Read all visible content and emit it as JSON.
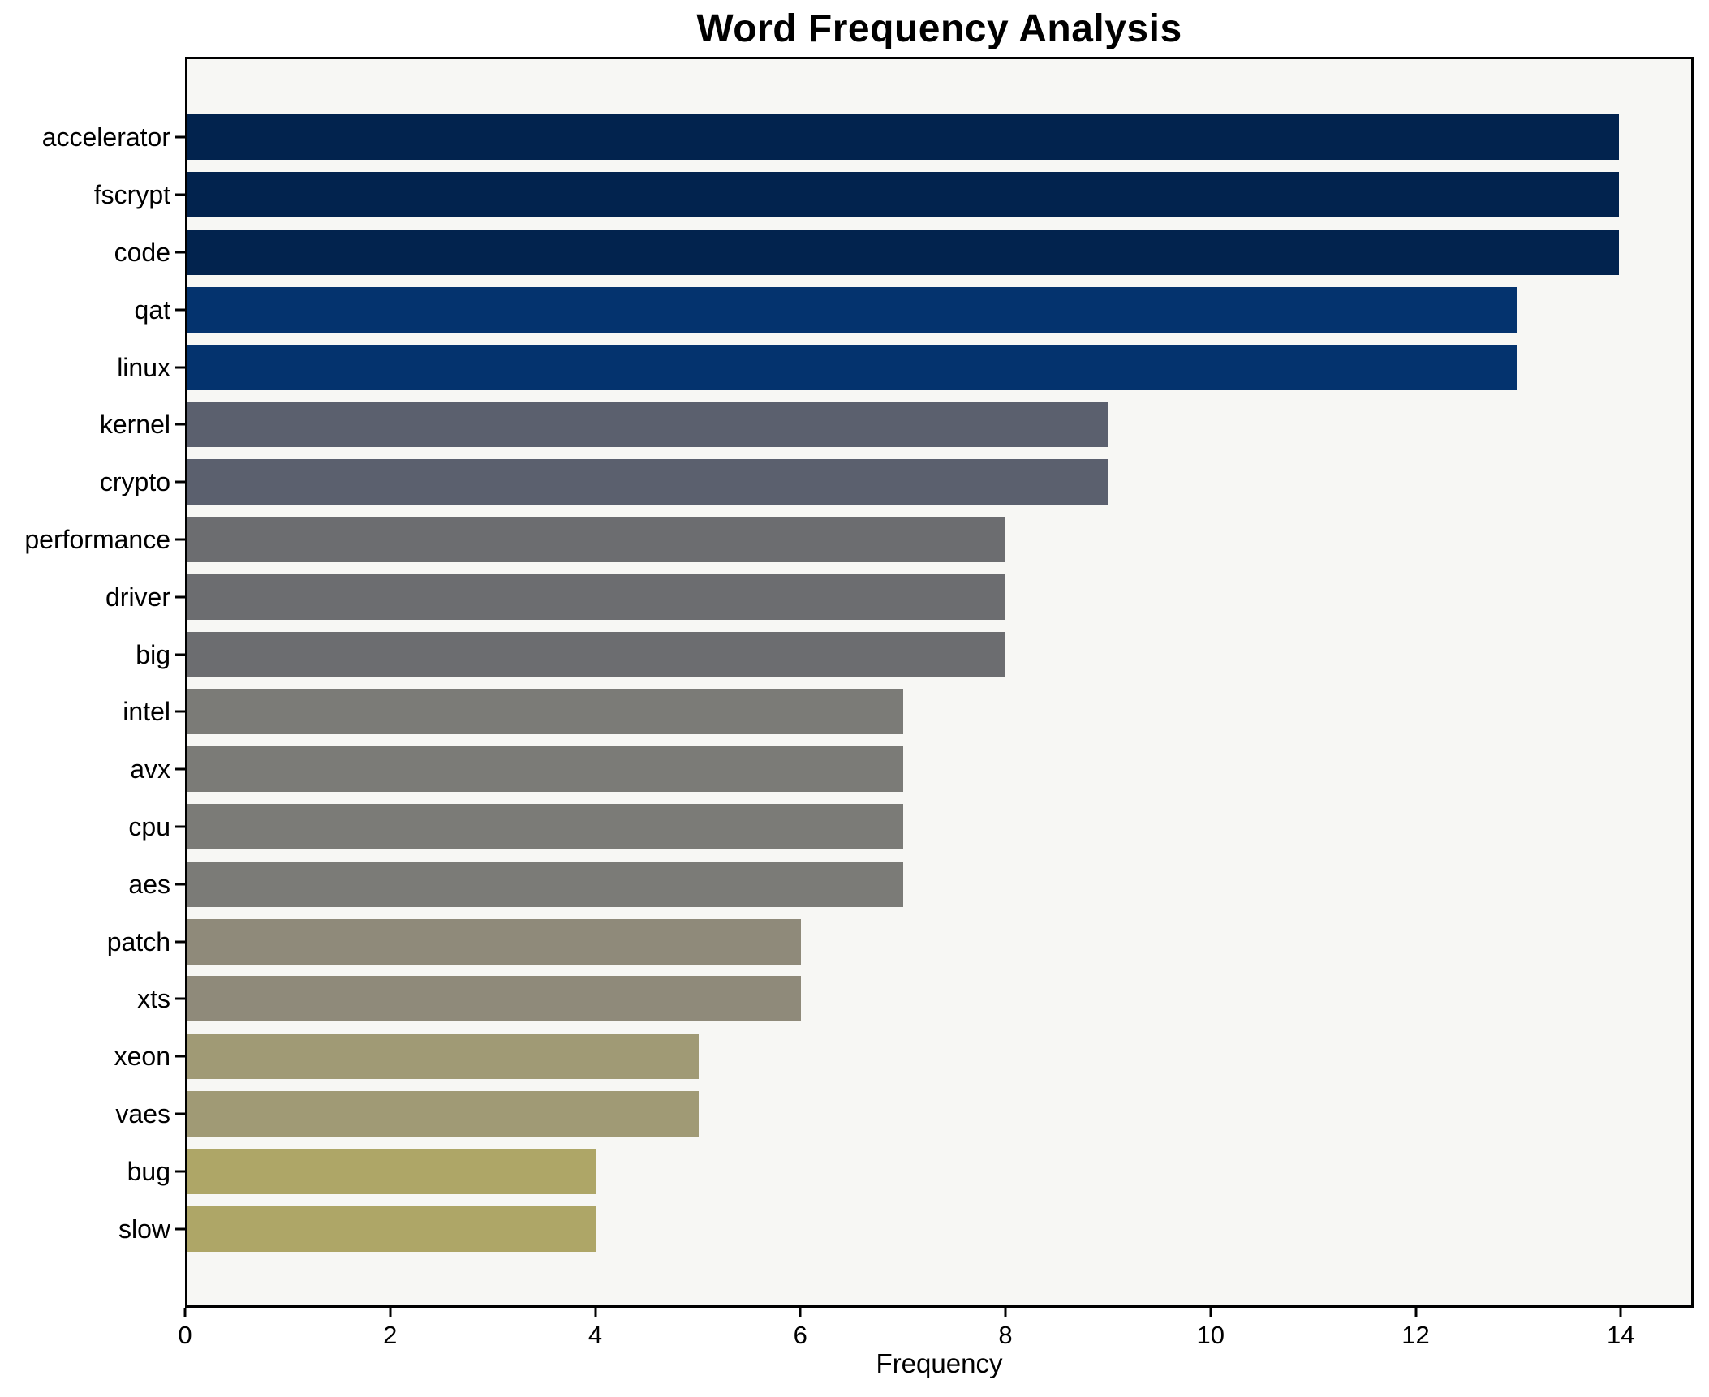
{
  "chart_data": {
    "type": "bar",
    "orientation": "horizontal",
    "title": "Word Frequency Analysis",
    "xlabel": "Frequency",
    "ylabel": "",
    "categories": [
      "accelerator",
      "fscrypt",
      "code",
      "qat",
      "linux",
      "kernel",
      "crypto",
      "performance",
      "driver",
      "big",
      "intel",
      "avx",
      "cpu",
      "aes",
      "patch",
      "xts",
      "xeon",
      "vaes",
      "bug",
      "slow"
    ],
    "values": [
      14,
      14,
      14,
      13,
      13,
      9,
      9,
      8,
      8,
      8,
      7,
      7,
      7,
      7,
      6,
      6,
      5,
      5,
      4,
      4
    ],
    "bar_colors": [
      "#02234e",
      "#02234e",
      "#02234e",
      "#04336e",
      "#04336e",
      "#5b606e",
      "#5b606e",
      "#6c6d70",
      "#6c6d70",
      "#6c6d70",
      "#7b7b77",
      "#7b7b77",
      "#7b7b77",
      "#7b7b77",
      "#8f8a7a",
      "#8f8a7a",
      "#a09a75",
      "#a09a75",
      "#aea667",
      "#aea667"
    ],
    "colors_by_value": {
      "14": "#02234e",
      "13": "#04336e",
      "9": "#5b606e",
      "8": "#6c6d70",
      "7": "#7b7b77",
      "6": "#8f8a7a",
      "5": "#a09a75",
      "4": "#aea667"
    },
    "xlim": [
      0,
      14.71
    ],
    "xticks": [
      0,
      2,
      4,
      6,
      8,
      10,
      12,
      14
    ],
    "grid": false,
    "legend_position": "none",
    "axes_background": "#f7f7f4",
    "figure_background": "#ffffff",
    "text_color": "#000000"
  }
}
